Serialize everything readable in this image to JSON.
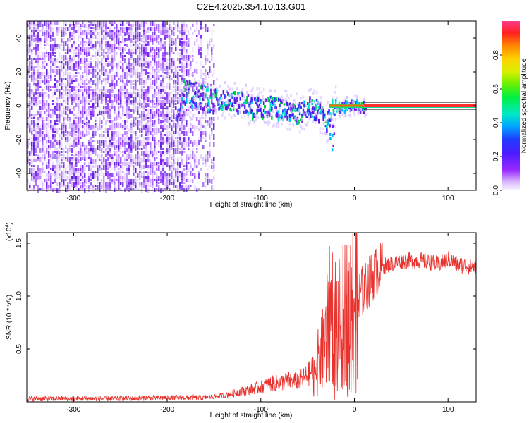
{
  "title": "C2E4.2025.354.10.13.G01",
  "chart_data": [
    {
      "type": "heatmap",
      "xlabel": "Height of straight line (km)",
      "ylabel": "Frequency (Hz)",
      "xlim": [
        -350,
        130
      ],
      "ylim": [
        -50,
        50
      ],
      "xticks": [
        -300,
        -200,
        -100,
        0,
        100
      ],
      "yticks": [
        -40,
        -20,
        0,
        20,
        40
      ],
      "xtick_labels": [
        "-300",
        "-200",
        "-100",
        "0",
        "100"
      ],
      "ytick_labels": [
        "-40",
        "-20",
        "0",
        "20",
        "40"
      ],
      "noise_region_km": [
        -350,
        -150
      ],
      "signal_track": [
        {
          "x": -185,
          "y": 8
        },
        {
          "x": -160,
          "y": 6
        },
        {
          "x": -145,
          "y": 5
        },
        {
          "x": -130,
          "y": 3
        },
        {
          "x": -120,
          "y": 3
        },
        {
          "x": -110,
          "y": 0
        },
        {
          "x": -100,
          "y": 0
        },
        {
          "x": -90,
          "y": 0
        },
        {
          "x": -75,
          "y": -2
        },
        {
          "x": -60,
          "y": -4
        },
        {
          "x": -50,
          "y": 0
        },
        {
          "x": -40,
          "y": -1
        },
        {
          "x": -30,
          "y": -10
        },
        {
          "x": -25,
          "y": 0
        },
        {
          "x": -15,
          "y": 0
        },
        {
          "x": 0,
          "y": 1
        },
        {
          "x": 10,
          "y": 0
        },
        {
          "x": 130,
          "y": 0
        }
      ],
      "colorbar": {
        "label": "Normalized spectral amplitude",
        "range": [
          0,
          1
        ],
        "ticks": [
          0.0,
          0.2,
          0.4,
          0.6,
          0.8
        ],
        "tick_labels": [
          "0.0",
          "0.2",
          "0.4",
          "0.6",
          "0.8"
        ]
      }
    },
    {
      "type": "line",
      "xlabel": "Height of straight line (km)",
      "ylabel": "SNR (10 * v/v)",
      "scale_label": "(x10^4)",
      "scale_base": "(x10",
      "scale_exp": "4",
      "scale_end": ")",
      "xlim": [
        -350,
        130
      ],
      "ylim": [
        0,
        1.6
      ],
      "xticks": [
        -300,
        -200,
        -100,
        0,
        100
      ],
      "yticks": [
        0.5,
        1.0,
        1.5
      ],
      "xtick_labels": [
        "-300",
        "-200",
        "-100",
        "0",
        "100"
      ],
      "ytick_labels": [
        "0.5",
        "1.0",
        "1.5"
      ],
      "series": [
        {
          "name": "SNR",
          "color": "#e8322d",
          "x": [
            -350,
            -300,
            -250,
            -200,
            -160,
            -140,
            -120,
            -100,
            -90,
            -80,
            -70,
            -60,
            -50,
            -40,
            -35,
            -30,
            -25,
            -20,
            -15,
            -10,
            0,
            10,
            20,
            30,
            50,
            70,
            90,
            100,
            110,
            130
          ],
          "y": [
            0.03,
            0.03,
            0.03,
            0.04,
            0.04,
            0.06,
            0.1,
            0.14,
            0.17,
            0.18,
            0.2,
            0.2,
            0.25,
            0.35,
            0.45,
            0.6,
            0.9,
            0.75,
            0.75,
            0.85,
            1.0,
            1.05,
            1.2,
            1.28,
            1.33,
            1.34,
            1.3,
            1.35,
            1.3,
            1.27
          ]
        }
      ]
    }
  ],
  "colors": {
    "signal": "#e8322d",
    "noise": "#7a22e6"
  }
}
